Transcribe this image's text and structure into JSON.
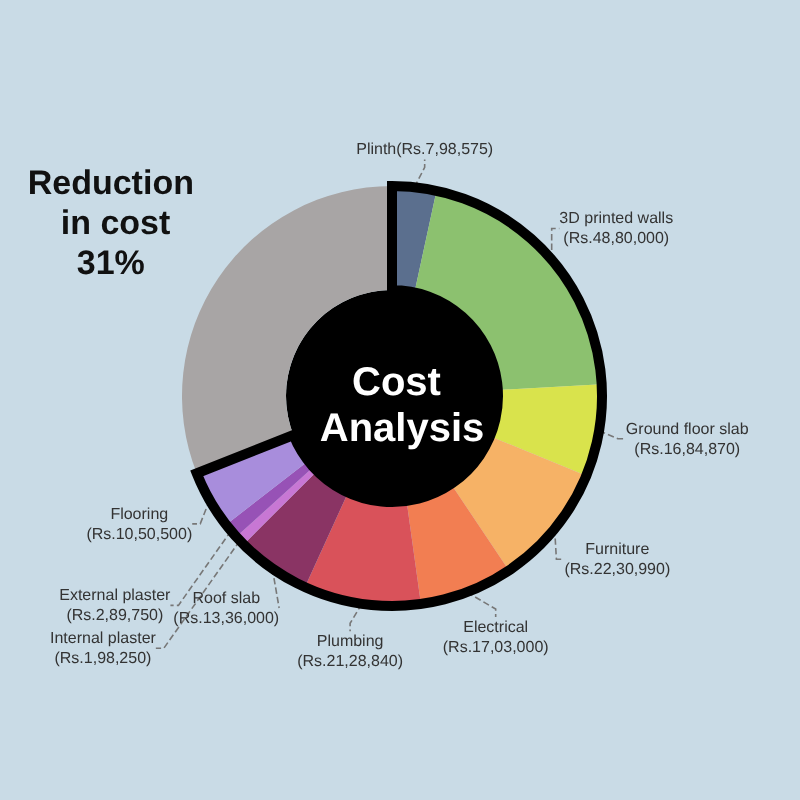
{
  "chart_data": {
    "type": "donut",
    "title": "Cost Analysis",
    "categories": [
      "Plinth",
      "3D printed walls",
      "Ground floor slab",
      "Furniture",
      "Electrical",
      "Plumbing",
      "Roof slab",
      "Internal plaster",
      "External plaster",
      "Flooring",
      "Reduction in cost"
    ],
    "values": [
      3.4,
      20.7,
      7.1,
      9.4,
      7.2,
      9.0,
      5.7,
      0.8,
      1.2,
      4.5,
      31
    ],
    "value_labels": [
      "(Rs.7,98,575)",
      "(Rs.48,80,000)",
      "(Rs.16,84,870)",
      "(Rs.22,30,990)",
      "(Rs.17,03,000)",
      "(Rs.21,28,840)",
      "(Rs.13,36,000)",
      "(Rs.1,98,250)",
      "(Rs.2,89,750)",
      "(Rs.10,50,500)",
      "31%"
    ],
    "colors": [
      "#5b6f8e",
      "#8cc16f",
      "#d9e34c",
      "#f6b266",
      "#f27e52",
      "#d9525a",
      "#8a3464",
      "#c877d4",
      "#9752b6",
      "#a88ddc",
      "#a8a5a5"
    ]
  }
}
